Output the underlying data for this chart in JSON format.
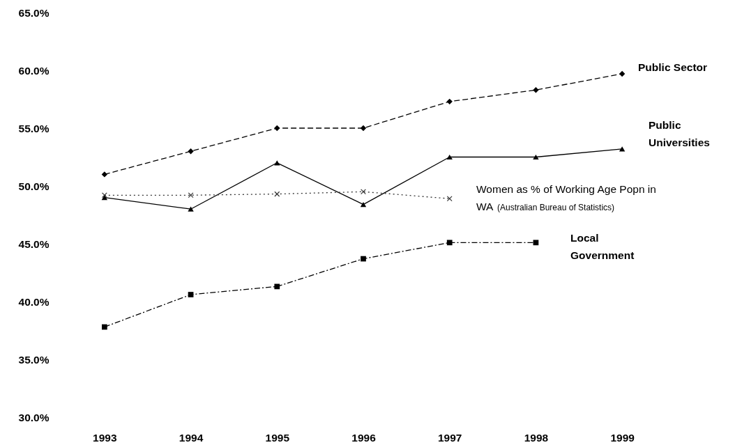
{
  "chart_data": {
    "type": "line",
    "categories": [
      "1993",
      "1994",
      "1995",
      "1996",
      "1997",
      "1998",
      "1999"
    ],
    "series": [
      {
        "name": "Public Sector",
        "color": "#000000",
        "marker": "diamond",
        "line_style": "dashed",
        "values": [
          51.0,
          53.0,
          55.0,
          55.0,
          57.3,
          58.3,
          59.7
        ]
      },
      {
        "name": "Public Universities",
        "color": "#000000",
        "marker": "triangle",
        "line_style": "solid",
        "values": [
          49.0,
          48.0,
          52.0,
          48.4,
          52.5,
          52.5,
          53.2
        ]
      },
      {
        "name": "Women as % of Working Age Popn in WA",
        "color": "#333333",
        "marker": "cross",
        "line_style": "dotted",
        "values": [
          49.2,
          49.2,
          49.3,
          49.5,
          48.9,
          null,
          null
        ]
      },
      {
        "name": "Local Government",
        "color": "#000000",
        "marker": "square",
        "line_style": "dashdot",
        "values": [
          37.8,
          40.6,
          41.3,
          43.7,
          45.1,
          45.1,
          null
        ]
      }
    ],
    "annotations": [
      "(Australian Bureau of Statistics)"
    ],
    "ylim": [
      30,
      65
    ],
    "yticks": [
      {
        "value": 30,
        "label": "30.0%"
      },
      {
        "value": 35,
        "label": "35.0%"
      },
      {
        "value": 40,
        "label": "40.0%"
      },
      {
        "value": 45,
        "label": "45.0%"
      },
      {
        "value": 50,
        "label": "50.0%"
      },
      {
        "value": 55,
        "label": "55.0%"
      },
      {
        "value": 60,
        "label": "60.0%"
      },
      {
        "value": 65,
        "label": "65.0%"
      }
    ],
    "grid": false
  }
}
